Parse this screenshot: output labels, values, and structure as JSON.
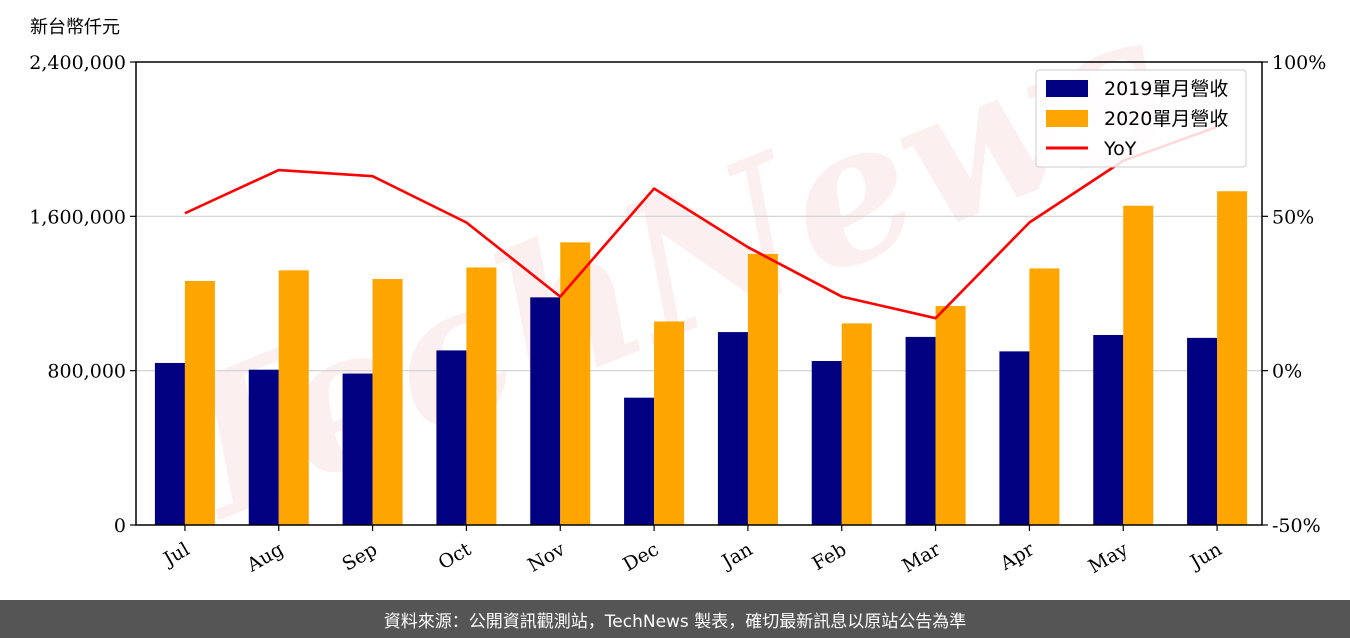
{
  "chart_data": {
    "type": "bar",
    "unit_label": "新台幣仟元",
    "categories": [
      "Jul",
      "Aug",
      "Sep",
      "Oct",
      "Nov",
      "Dec",
      "Jan",
      "Feb",
      "Mar",
      "Apr",
      "May",
      "Jun"
    ],
    "series": [
      {
        "name": "2019單月營收",
        "type": "bar",
        "axis": "left",
        "color": "#000080",
        "values": [
          840000,
          805000,
          785000,
          905000,
          1180000,
          660000,
          1000000,
          850000,
          975000,
          900000,
          985000,
          970000
        ]
      },
      {
        "name": "2020單月營收",
        "type": "bar",
        "axis": "left",
        "color": "#FFA500",
        "values": [
          1265000,
          1320000,
          1275000,
          1335000,
          1465000,
          1055000,
          1405000,
          1045000,
          1135000,
          1330000,
          1655000,
          1730000
        ]
      },
      {
        "name": "YoY",
        "type": "line",
        "axis": "right",
        "color": "#FF0000",
        "values": [
          51,
          65,
          63,
          48,
          24,
          59,
          40,
          24,
          17,
          48,
          68,
          79
        ]
      }
    ],
    "yticks_left": [
      {
        "value": 0,
        "label": "0"
      },
      {
        "value": 800000,
        "label": "800,000"
      },
      {
        "value": 1600000,
        "label": "1,600,000"
      },
      {
        "value": 2400000,
        "label": "2,400,000"
      }
    ],
    "yticks_right": [
      {
        "value": -50,
        "label": "-50%"
      },
      {
        "value": 0,
        "label": "0%"
      },
      {
        "value": 50,
        "label": "50%"
      },
      {
        "value": 100,
        "label": "100%"
      }
    ],
    "ylim_left": [
      0,
      2400000
    ],
    "ylim_right": [
      -50,
      100
    ],
    "grid": "horizontal",
    "legend_position": "top-right",
    "watermark": "TechNews"
  },
  "footer": {
    "source_text": "資料來源：公開資訊觀測站，TechNews 製表，確切最新訊息以原站公告為準"
  }
}
